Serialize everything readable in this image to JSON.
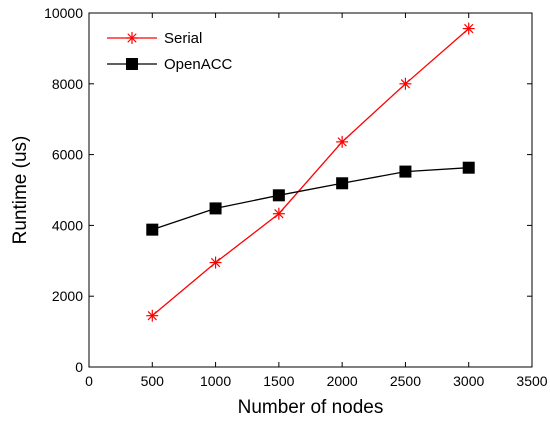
{
  "chart_data": {
    "type": "line",
    "xlabel": "Number of nodes",
    "ylabel": "Runtime (us)",
    "xlim": [
      0,
      3500
    ],
    "ylim": [
      0,
      10000
    ],
    "xticks": [
      0,
      500,
      1000,
      1500,
      2000,
      2500,
      3000,
      3500
    ],
    "yticks": [
      0,
      2000,
      4000,
      6000,
      8000,
      10000
    ],
    "x": [
      500,
      1000,
      1500,
      2000,
      2500,
      3000
    ],
    "grid": false,
    "legend_position": "top-left",
    "series": [
      {
        "name": "Serial",
        "values": [
          1450,
          2950,
          4330,
          6360,
          8000,
          9560
        ],
        "color": "#ff0000",
        "marker": "asterisk"
      },
      {
        "name": "OpenACC",
        "values": [
          3880,
          4480,
          4850,
          5190,
          5520,
          5630
        ],
        "color": "#000000",
        "marker": "square"
      }
    ]
  }
}
